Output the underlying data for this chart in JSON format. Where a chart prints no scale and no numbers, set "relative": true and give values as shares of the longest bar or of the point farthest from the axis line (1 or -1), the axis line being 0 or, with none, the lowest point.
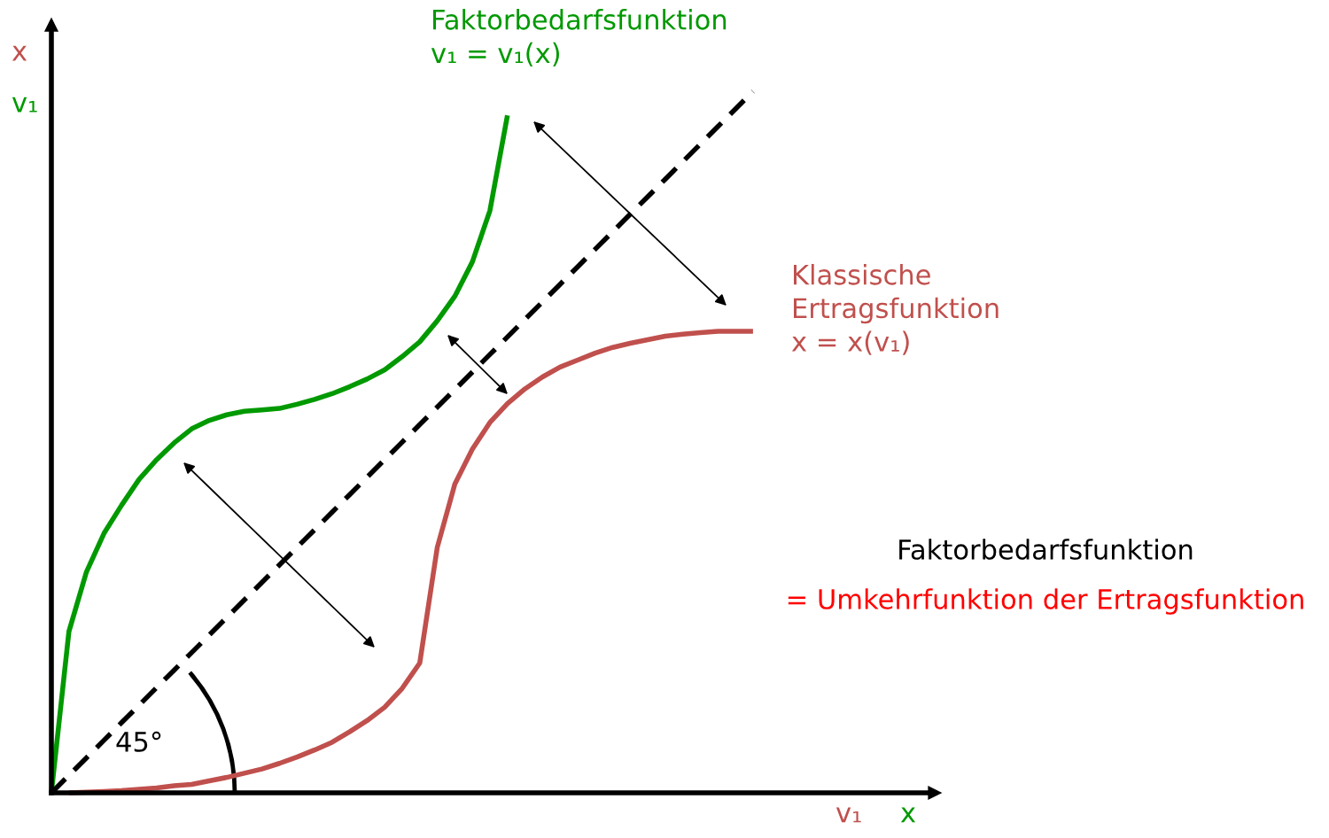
{
  "chart_data": {
    "type": "line",
    "relative": true,
    "xlabel": "v₁",
    "ylabel": "x",
    "marker": "none",
    "categories": [
      null,
      null,
      null,
      null,
      null,
      null,
      null,
      null,
      null,
      null,
      null,
      null,
      null,
      null,
      null,
      null,
      null,
      null,
      null,
      null,
      null,
      null,
      null,
      null,
      null,
      null,
      null,
      null,
      null,
      null,
      null,
      null,
      null,
      null,
      null,
      null,
      null,
      null,
      null,
      null,
      null
    ],
    "series": [
      {
        "name": "Faktorbedarfsfunktion\nv₁ = v₁(x)",
        "color": "#009900",
        "values": [
          0,
          0.23,
          0.315,
          0.37,
          0.41,
          0.447,
          0.475,
          0.499,
          0.519,
          0.531,
          0.539,
          0.544,
          0.546,
          0.548,
          0.554,
          0.561,
          0.569,
          0.579,
          0.59,
          0.603,
          0.622,
          0.643,
          0.673,
          0.708,
          0.757,
          0.83,
          0.966,
          null,
          null,
          null,
          null,
          null,
          null,
          null,
          null,
          null,
          null,
          null,
          null,
          null,
          null
        ]
      },
      {
        "name": "Klassische\nErtragsfunktion\nx = x(v₁)",
        "color": "#c0504d",
        "values": [
          null,
          0,
          0.001,
          0.002,
          0.003,
          0.005,
          0.007,
          0.01,
          0.012,
          0.017,
          0.022,
          0.028,
          0.034,
          0.042,
          0.051,
          0.061,
          0.072,
          0.087,
          0.103,
          0.122,
          0.149,
          0.185,
          0.35,
          0.44,
          0.49,
          0.528,
          0.555,
          0.576,
          0.593,
          0.607,
          0.617,
          0.627,
          0.635,
          0.641,
          0.646,
          0.651,
          0.654,
          0.656,
          0.658,
          0.658,
          0.658
        ]
      },
      {
        "color": "#000000",
        "line_style": "dashed",
        "values": [
          0,
          0.025,
          0.05,
          0.075,
          0.1,
          0.125,
          0.15,
          0.175,
          0.2,
          0.225,
          0.25,
          0.275,
          0.3,
          0.325,
          0.35,
          0.375,
          0.4,
          0.425,
          0.45,
          0.475,
          0.5,
          0.525,
          0.55,
          0.575,
          0.6,
          0.625,
          0.65,
          0.675,
          0.7,
          0.725,
          0.75,
          0.775,
          0.8,
          0.825,
          0.85,
          0.875,
          0.9,
          0.925,
          0.95,
          0.975,
          1.0
        ]
      }
    ],
    "annotations": [
      "x",
      "v₁",
      "45°",
      "Faktorbedarfsfunktion",
      "= Umkehrfunktion der Ertragsfunktion"
    ]
  }
}
